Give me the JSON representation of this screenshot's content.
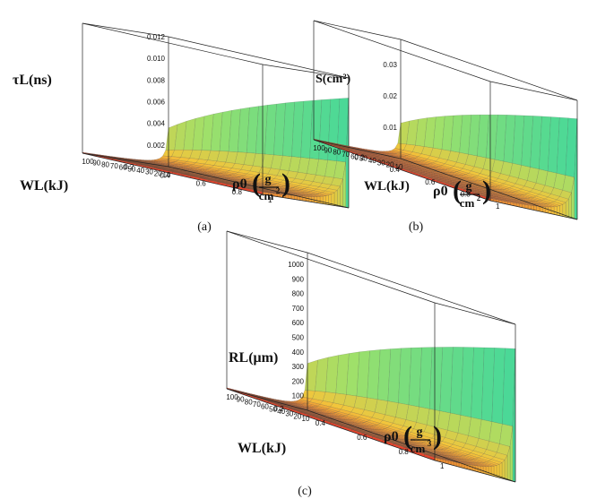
{
  "chart_data": [
    {
      "type": "surface3d",
      "caption": "(a)",
      "zlabel": "τL(ns)",
      "z_ticks": [
        "0.002",
        "0.004",
        "0.006",
        "0.008",
        "0.010",
        "0.012"
      ],
      "z_tick_values": [
        0.002,
        0.004,
        0.006,
        0.008,
        0.01,
        0.012
      ],
      "zlim": [
        0,
        0.012
      ],
      "xlabel": "WL(kJ)",
      "x_ticks": [
        "10",
        "20",
        "30",
        "40",
        "50",
        "60",
        "70",
        "80",
        "90",
        "100"
      ],
      "xlim": [
        10,
        100
      ],
      "ylabel_main": "ρ0",
      "ylabel_num": "g",
      "ylabel_den": "cm",
      "ylabel_den_exp": "2",
      "y_ticks": [
        "0.2",
        "0.4",
        "0.6",
        "0.8",
        "1"
      ],
      "ylim": [
        0,
        1
      ],
      "colormap": [
        "#e53a2c",
        "#f3c53b",
        "#9fe06a",
        "#2fd6a6",
        "#2b3b94"
      ]
    },
    {
      "type": "surface3d",
      "caption": "(b)",
      "zlabel": "S(cm²)",
      "z_ticks": [
        "0.01",
        "0.02",
        "0.03"
      ],
      "z_tick_values": [
        0.01,
        0.02,
        0.03
      ],
      "zlim": [
        0,
        0.038
      ],
      "xlabel": "WL(kJ)",
      "x_ticks": [
        "10",
        "20",
        "30",
        "40",
        "50",
        "60",
        "70",
        "80",
        "90",
        "100"
      ],
      "xlim": [
        10,
        100
      ],
      "ylabel_main": "ρ0",
      "ylabel_num": "g",
      "ylabel_den": "cm",
      "ylabel_den_exp": "2",
      "y_ticks": [
        "0.2",
        "0.4",
        "0.6",
        "0.8",
        "1"
      ],
      "ylim": [
        0,
        1
      ],
      "colormap": [
        "#e53a2c",
        "#f3c53b",
        "#9fe06a",
        "#2fd6a6",
        "#2b3b94"
      ]
    },
    {
      "type": "surface3d",
      "caption": "(c)",
      "zlabel": "RL(μm)",
      "z_ticks": [
        "100",
        "200",
        "300",
        "400",
        "500",
        "600",
        "700",
        "800",
        "900",
        "1000"
      ],
      "z_tick_values": [
        100,
        200,
        300,
        400,
        500,
        600,
        700,
        800,
        900,
        1000
      ],
      "zlim": [
        0,
        1080
      ],
      "xlabel": "WL(kJ)",
      "x_ticks": [
        "10",
        "20",
        "30",
        "40",
        "50",
        "60",
        "70",
        "80",
        "90",
        "100"
      ],
      "xlim": [
        10,
        100
      ],
      "ylabel_main": "ρ0",
      "ylabel_num": "g",
      "ylabel_den": "cm",
      "ylabel_den_exp": "3",
      "y_ticks": [
        "0.2",
        "0.4",
        "0.6",
        "0.8",
        "1"
      ],
      "ylim": [
        0,
        1
      ],
      "colormap": [
        "#e53a2c",
        "#f3c53b",
        "#9fe06a",
        "#2fd6a6",
        "#2b3b94"
      ]
    }
  ]
}
